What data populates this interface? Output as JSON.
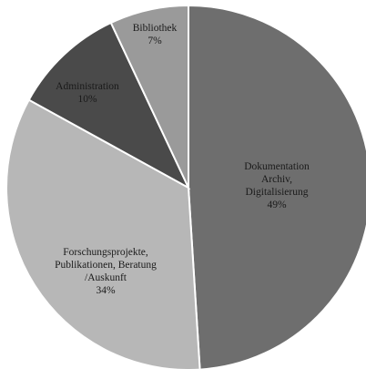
{
  "chart_data": {
    "type": "pie",
    "title": "",
    "start_angle_deg": 0,
    "direction": "clockwise",
    "slices": [
      {
        "label_lines": [
          "Dokumentation",
          "Archiv,",
          "Digitalisierung"
        ],
        "value_label": "49%",
        "value": 49,
        "color": "#6e6e6e"
      },
      {
        "label_lines": [
          "Forschungsprojekte,",
          "Publikationen, Beratung",
          "/Auskunft"
        ],
        "value_label": "34%",
        "value": 34,
        "color": "#b7b7b7"
      },
      {
        "label_lines": [
          "Administration"
        ],
        "value_label": "10%",
        "value": 10,
        "color": "#4a4a4a"
      },
      {
        "label_lines": [
          "Bibliothek"
        ],
        "value_label": "7%",
        "value": 7,
        "color": "#9a9a9a"
      }
    ],
    "stroke_color": "#ffffff"
  }
}
